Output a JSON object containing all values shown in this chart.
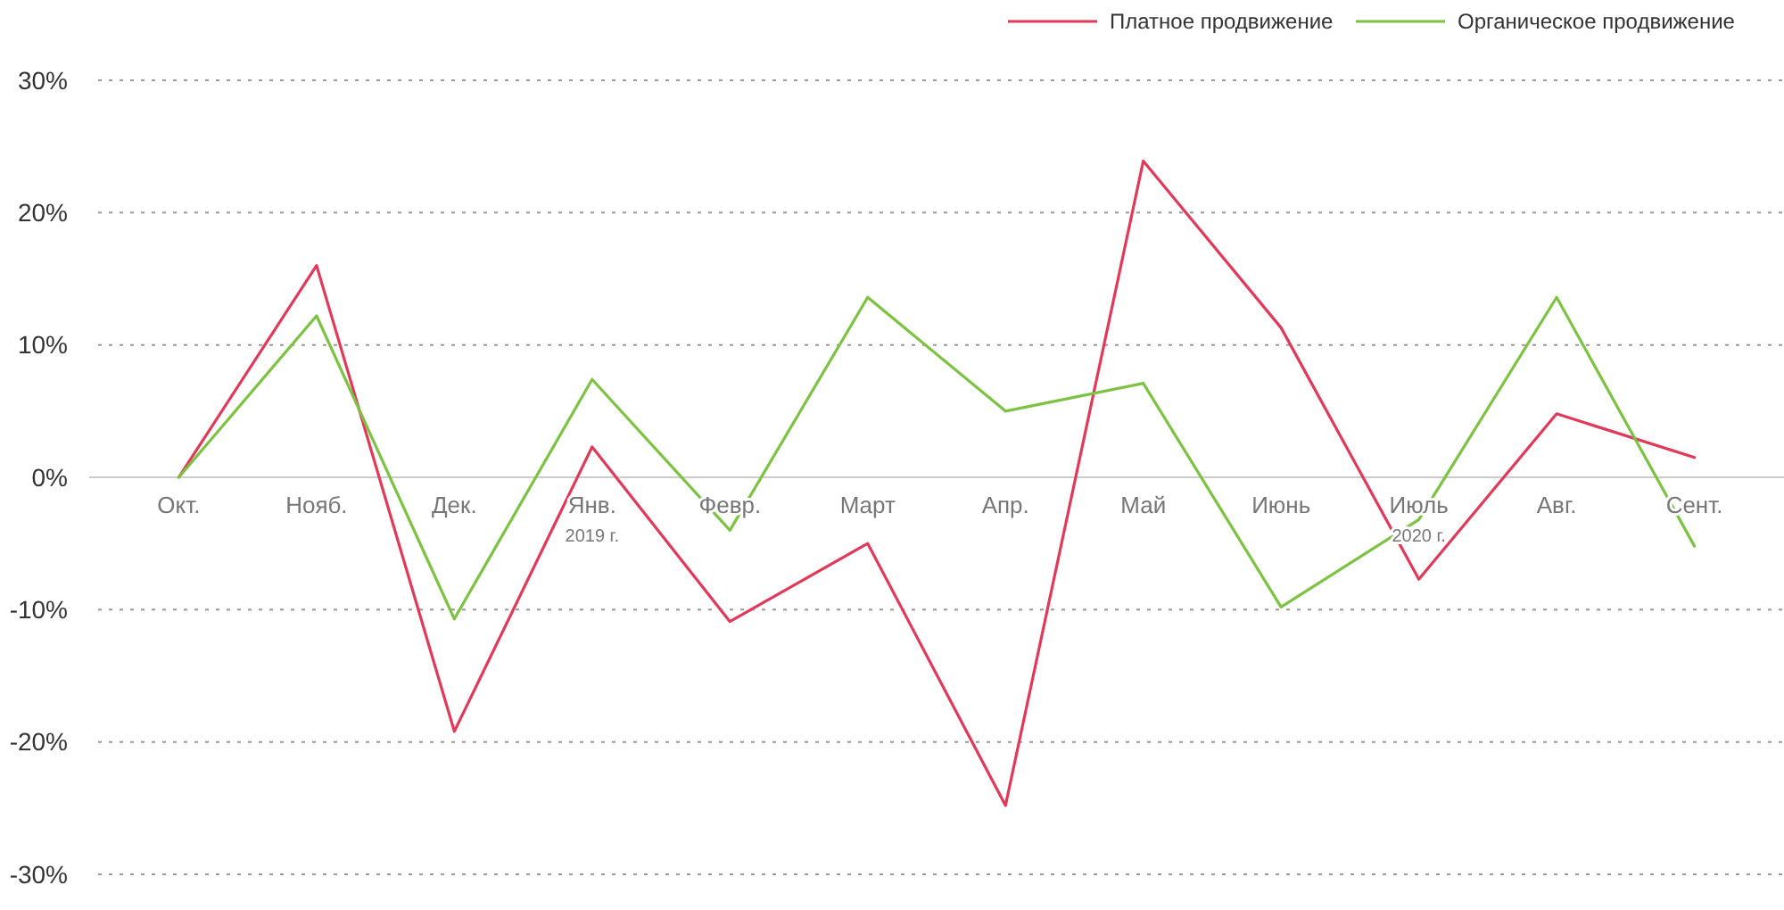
{
  "chart_data": {
    "type": "line",
    "categories": [
      "Окт.",
      "Нояб.",
      "Дек.",
      "Янв.",
      "Февр.",
      "Март",
      "Апр.",
      "Май",
      "Июнь",
      "Июль",
      "Авг.",
      "Сент."
    ],
    "series": [
      {
        "name": "Платное продвижение",
        "color": "#e0395a",
        "values": [
          0,
          16,
          -19.2,
          2.3,
          -10.9,
          -5,
          -24.8,
          23.9,
          11.3,
          -7.7,
          4.8,
          1.5
        ]
      },
      {
        "name": "Органическое продвижение",
        "color": "#7dc242",
        "values": [
          0,
          12.2,
          -10.7,
          7.4,
          -4,
          13.6,
          5,
          7.1,
          -9.8,
          -3.2,
          13.6,
          -5.2
        ]
      }
    ],
    "ylim": [
      -30,
      30
    ],
    "yticks": [
      {
        "value": -30,
        "label": "-30%"
      },
      {
        "value": -20,
        "label": "-20%"
      },
      {
        "value": -10,
        "label": "-10%"
      },
      {
        "value": 0,
        "label": "0%"
      },
      {
        "value": 10,
        "label": "10%"
      },
      {
        "value": 20,
        "label": "20%"
      },
      {
        "value": 30,
        "label": "30%"
      }
    ],
    "grid": "y",
    "legend": "top right",
    "marker": "none",
    "line_style": "solid",
    "annotations": [
      "2019 г.",
      "2020 г."
    ]
  }
}
